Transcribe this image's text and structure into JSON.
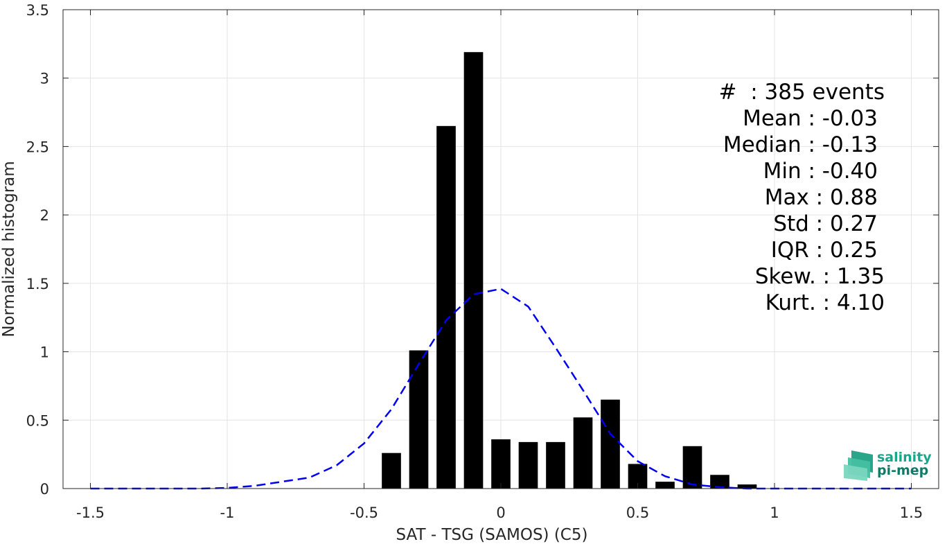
{
  "chart_data": {
    "type": "bar",
    "xlabel": "SAT - TSG (SAMOS) (C5)",
    "ylabel": "Normalized histogram",
    "xlim": [
      -1.6,
      1.6
    ],
    "ylim": [
      0,
      3.5
    ],
    "xticks": [
      -1.5,
      -1,
      -0.5,
      0,
      0.5,
      1,
      1.5
    ],
    "xtick_labels": [
      "-1.5",
      "-1",
      "-0.5",
      "0",
      "0.5",
      "1",
      "1.5"
    ],
    "yticks": [
      0,
      0.5,
      1,
      1.5,
      2,
      2.5,
      3,
      3.5
    ],
    "ytick_labels": [
      "0",
      "0.5",
      "1",
      "1.5",
      "2",
      "2.5",
      "3",
      "3.5"
    ],
    "grid": true,
    "bar_color": "#000000",
    "bar_width": 0.07,
    "bars": {
      "x": [
        -0.4,
        -0.3,
        -0.2,
        -0.1,
        0.0,
        0.1,
        0.2,
        0.3,
        0.4,
        0.5,
        0.6,
        0.7,
        0.8,
        0.9
      ],
      "values": [
        0.26,
        1.01,
        2.65,
        3.19,
        0.36,
        0.34,
        0.34,
        0.52,
        0.65,
        0.18,
        0.05,
        0.31,
        0.1,
        0.03
      ]
    },
    "fit_curve": {
      "style": "dashed",
      "color": "#0000ee",
      "x": [
        -1.5,
        -1.4,
        -1.3,
        -1.2,
        -1.1,
        -1.0,
        -0.9,
        -0.8,
        -0.7,
        -0.6,
        -0.5,
        -0.4,
        -0.3,
        -0.2,
        -0.1,
        0.0,
        0.1,
        0.2,
        0.3,
        0.4,
        0.5,
        0.6,
        0.7,
        0.8,
        0.9,
        1.0,
        1.1,
        1.2,
        1.3,
        1.4,
        1.5
      ],
      "y": [
        0.0,
        0.0,
        0.0,
        0.0,
        0.0,
        0.005,
        0.02,
        0.05,
        0.08,
        0.17,
        0.33,
        0.58,
        0.91,
        1.23,
        1.42,
        1.46,
        1.33,
        1.03,
        0.72,
        0.4,
        0.2,
        0.09,
        0.03,
        0.01,
        0.0,
        0.0,
        0.0,
        0.0,
        0.0,
        0.0,
        0.0
      ]
    }
  },
  "stats": [
    {
      "label": "#  : 385 events"
    },
    {
      "label": "Mean : -0.03"
    },
    {
      "label": "Median : -0.13"
    },
    {
      "label": "Min : -0.40"
    },
    {
      "label": "Max : 0.88"
    },
    {
      "label": "Std : 0.27"
    },
    {
      "label": "IQR : 0.25"
    },
    {
      "label": "Skew. : 1.35"
    },
    {
      "label": "Kurt. : 4.10"
    }
  ],
  "logo": {
    "line1": "salinity",
    "line2": "pi-mep",
    "color_line1": "#1aa68a",
    "color_line2": "#127a68"
  }
}
